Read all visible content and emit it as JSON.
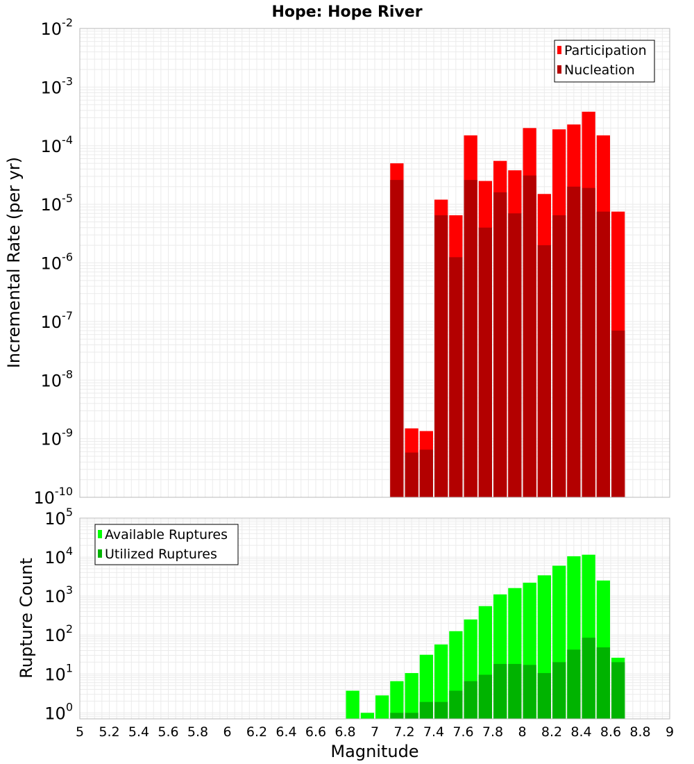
{
  "chart_data": [
    {
      "type": "bar",
      "title": "Hope: Hope River",
      "xlabel": "",
      "ylabel": "Incremental Rate (per yr)",
      "y_scale": "log",
      "xlim": [
        5,
        9
      ],
      "ylim": [
        1e-10,
        0.01
      ],
      "y_tick_exponents": [
        "-10",
        "-9",
        "-8",
        "-7",
        "-6",
        "-5",
        "-4",
        "-3",
        "-2"
      ],
      "bar_width": 0.1,
      "legend_position": "top-right",
      "series": [
        {
          "name": "Participation",
          "color": "#ff0000",
          "x": [
            7.15,
            7.25,
            7.35,
            7.45,
            7.55,
            7.65,
            7.75,
            7.85,
            7.95,
            8.05,
            8.15,
            8.25,
            8.35,
            8.45,
            8.55,
            8.65
          ],
          "values": [
            5e-05,
            1.5e-09,
            1.35e-09,
            1.2e-05,
            6.5e-06,
            0.00015,
            2.5e-05,
            5.5e-05,
            3.8e-05,
            0.0002,
            1.5e-05,
            0.00019,
            0.00023,
            0.00038,
            0.00015,
            7.5e-06
          ]
        },
        {
          "name": "Nucleation",
          "color": "#b30000",
          "x": [
            7.15,
            7.25,
            7.35,
            7.45,
            7.55,
            7.65,
            7.75,
            7.85,
            7.95,
            8.05,
            8.15,
            8.25,
            8.35,
            8.45,
            8.55,
            8.65
          ],
          "values": [
            2.6e-05,
            5.8e-10,
            6.5e-10,
            6.5e-06,
            1.25e-06,
            2.6e-05,
            4e-06,
            1.6e-05,
            7e-06,
            3.1e-05,
            2e-06,
            6.5e-06,
            2e-05,
            1.9e-05,
            7.5e-06,
            7e-08
          ]
        }
      ]
    },
    {
      "type": "bar",
      "title": "",
      "xlabel": "Magnitude",
      "ylabel": "Rupture Count",
      "y_scale": "log",
      "xlim": [
        5,
        9
      ],
      "ylim": [
        0.7,
        100000.0
      ],
      "y_tick_exponents": [
        "0",
        "1",
        "2",
        "3",
        "4",
        "5"
      ],
      "x_ticks": [
        "5",
        "5.2",
        "5.4",
        "5.6",
        "5.8",
        "6",
        "6.2",
        "6.4",
        "6.6",
        "6.8",
        "7",
        "7.2",
        "7.4",
        "7.6",
        "7.8",
        "8",
        "8.2",
        "8.4",
        "8.6",
        "8.8",
        "9"
      ],
      "bar_width": 0.1,
      "legend_position": "top-left",
      "series": [
        {
          "name": "Available Ruptures",
          "color": "#00ff00",
          "x": [
            6.85,
            6.95,
            7.05,
            7.15,
            7.25,
            7.35,
            7.45,
            7.55,
            7.65,
            7.75,
            7.85,
            7.95,
            8.05,
            8.15,
            8.25,
            8.35,
            8.45,
            8.55,
            8.65
          ],
          "values": [
            3.7,
            1,
            2.8,
            6.5,
            10.5,
            31,
            57,
            125,
            250,
            550,
            1100,
            1600,
            2200,
            3400,
            6000,
            10500,
            11500,
            2500,
            26
          ]
        },
        {
          "name": "Utilized Ruptures",
          "color": "#00b300",
          "x": [
            7.15,
            7.25,
            7.35,
            7.45,
            7.55,
            7.65,
            7.75,
            7.85,
            7.95,
            8.05,
            8.15,
            8.25,
            8.35,
            8.45,
            8.55,
            8.65
          ],
          "values": [
            1,
            1,
            1.9,
            1.9,
            3.7,
            6.5,
            9.5,
            18,
            18,
            17,
            10.5,
            20,
            42,
            85,
            48,
            20
          ]
        }
      ]
    }
  ]
}
